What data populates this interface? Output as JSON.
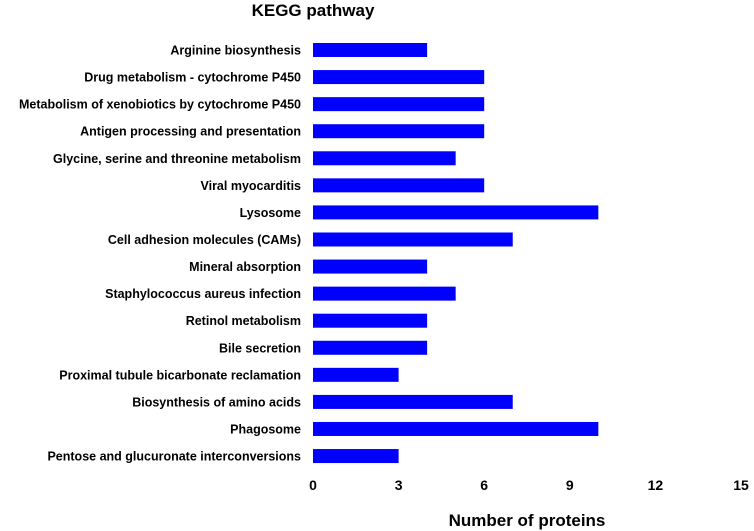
{
  "chart_data": {
    "type": "bar",
    "orientation": "horizontal",
    "title": "KEGG pathway",
    "xlabel": "Number of proteins",
    "ylabel": "",
    "xlim": [
      0,
      15
    ],
    "xticks": [
      0,
      3,
      6,
      9,
      12,
      15
    ],
    "grid": false,
    "legend": "none",
    "bar_color": "#0000FF",
    "categories": [
      "Arginine biosynthesis",
      "Drug metabolism - cytochrome P450",
      "Metabolism of xenobiotics by cytochrome P450",
      "Antigen processing and presentation",
      "Glycine, serine and threonine metabolism",
      "Viral myocarditis",
      "Lysosome",
      "Cell adhesion molecules (CAMs)",
      "Mineral absorption",
      "Staphylococcus aureus infection",
      "Retinol metabolism",
      "Bile secretion",
      "Proximal tubule bicarbonate reclamation",
      "Biosynthesis of amino acids",
      "Phagosome",
      "Pentose and glucuronate interconversions"
    ],
    "values": [
      4,
      6,
      6,
      6,
      5,
      6,
      10,
      7,
      4,
      5,
      4,
      4,
      3,
      7,
      10,
      3
    ]
  }
}
